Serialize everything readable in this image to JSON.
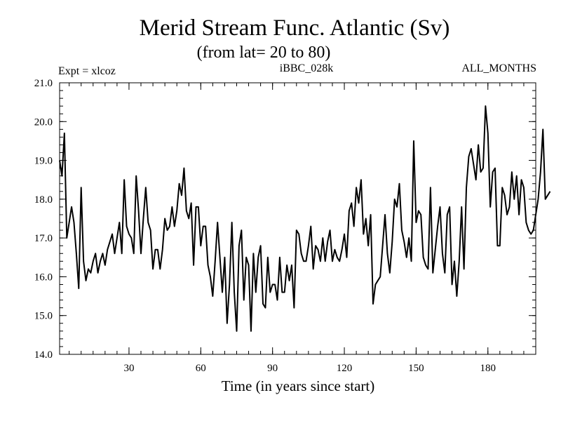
{
  "chart_data": {
    "type": "line",
    "title": "Merid Stream Func. Atlantic (Sv)",
    "subtitle": "(from lat= 20 to 80)",
    "left_label": "Expt = xlcoz",
    "center_label": "iBBC_028k",
    "right_label": "ALL_MONTHS",
    "xlabel": "Time (in years since start)",
    "ylabel": "",
    "xlim": [
      1,
      200
    ],
    "ylim": [
      14.0,
      21.0
    ],
    "x_ticks": [
      30,
      60,
      90,
      120,
      150,
      180
    ],
    "x_tick_labels": [
      "30",
      "60",
      "90",
      "120",
      "150",
      "180"
    ],
    "y_ticks": [
      14,
      15,
      16,
      17,
      18,
      19,
      20,
      21
    ],
    "y_tick_labels": [
      "14.0",
      "15.0",
      "16.0",
      "17.0",
      "18.0",
      "19.0",
      "20.0",
      "21.0"
    ],
    "grid": false,
    "line_color": "#000000",
    "series": [
      {
        "name": "Merid Stream Func. Atlantic",
        "x_start": 1,
        "x_step": 1,
        "values": [
          19.0,
          18.6,
          19.7,
          17.0,
          17.4,
          17.8,
          17.4,
          16.6,
          15.7,
          18.3,
          16.4,
          15.9,
          16.2,
          16.1,
          16.4,
          16.6,
          16.1,
          16.4,
          16.6,
          16.3,
          16.7,
          16.9,
          17.1,
          16.6,
          17.0,
          17.4,
          16.6,
          18.5,
          17.3,
          17.1,
          17.0,
          16.6,
          18.6,
          17.7,
          16.6,
          17.5,
          18.3,
          17.4,
          17.2,
          16.2,
          16.7,
          16.7,
          16.2,
          16.7,
          17.5,
          17.2,
          17.3,
          17.8,
          17.3,
          17.7,
          18.4,
          18.1,
          18.8,
          17.7,
          17.5,
          17.9,
          16.3,
          17.8,
          17.8,
          16.8,
          17.3,
          17.3,
          16.3,
          16.0,
          15.5,
          16.4,
          17.4,
          16.5,
          15.6,
          16.5,
          14.8,
          15.8,
          17.4,
          15.6,
          14.6,
          16.8,
          17.2,
          15.4,
          16.5,
          16.3,
          14.6,
          16.6,
          15.6,
          16.5,
          16.8,
          15.3,
          15.2,
          16.5,
          15.6,
          15.8,
          15.8,
          15.4,
          16.5,
          15.6,
          15.6,
          16.3,
          15.9,
          16.3,
          15.2,
          17.2,
          17.1,
          16.6,
          16.4,
          16.4,
          16.8,
          17.3,
          16.2,
          16.8,
          16.7,
          16.4,
          17.0,
          16.4,
          16.9,
          17.2,
          16.4,
          16.7,
          16.5,
          16.4,
          16.7,
          17.1,
          16.5,
          17.7,
          17.9,
          17.3,
          18.3,
          17.9,
          18.5,
          17.1,
          17.5,
          16.8,
          17.6,
          15.3,
          15.8,
          15.9,
          16.0,
          16.8,
          17.6,
          16.6,
          16.1,
          16.9,
          18.0,
          17.8,
          18.4,
          17.2,
          16.9,
          16.5,
          17.0,
          16.4,
          19.5,
          17.4,
          17.7,
          17.6,
          16.5,
          16.3,
          16.2,
          18.3,
          16.1,
          16.7,
          17.3,
          17.8,
          16.6,
          16.1,
          17.6,
          17.8,
          15.8,
          16.4,
          15.5,
          16.4,
          17.8,
          16.2,
          18.3,
          19.1,
          19.3,
          18.9,
          18.5,
          19.4,
          18.7,
          18.8,
          20.4,
          19.7,
          17.8,
          18.7,
          18.8,
          16.8,
          16.8,
          18.3,
          18.1,
          17.6,
          17.8,
          18.7,
          18.0,
          18.6,
          17.6,
          18.5,
          18.3,
          17.4,
          17.2,
          17.1,
          17.2,
          17.6,
          18.0,
          18.7,
          19.8,
          18.0,
          18.1,
          18.2
        ]
      }
    ]
  }
}
